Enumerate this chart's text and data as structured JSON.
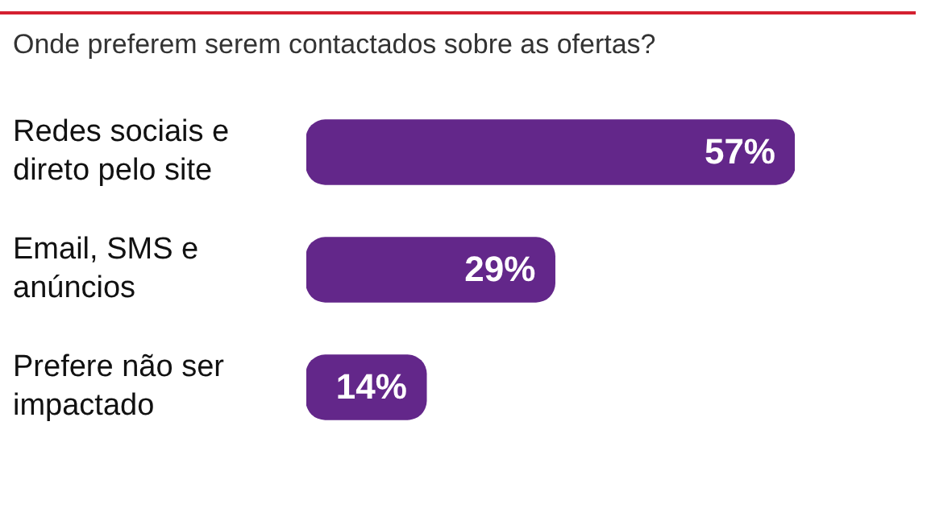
{
  "chart_data": {
    "type": "bar",
    "orientation": "horizontal",
    "title": "Onde preferem serem contactados sobre as ofertas?",
    "categories": [
      "Redes sociais e direto pelo site",
      "Email, SMS e anúncios",
      "Prefere não ser impactado"
    ],
    "values": [
      57,
      29,
      14
    ],
    "color": "#63278a",
    "value_labels": [
      "57%",
      "29%",
      "14%"
    ]
  }
}
